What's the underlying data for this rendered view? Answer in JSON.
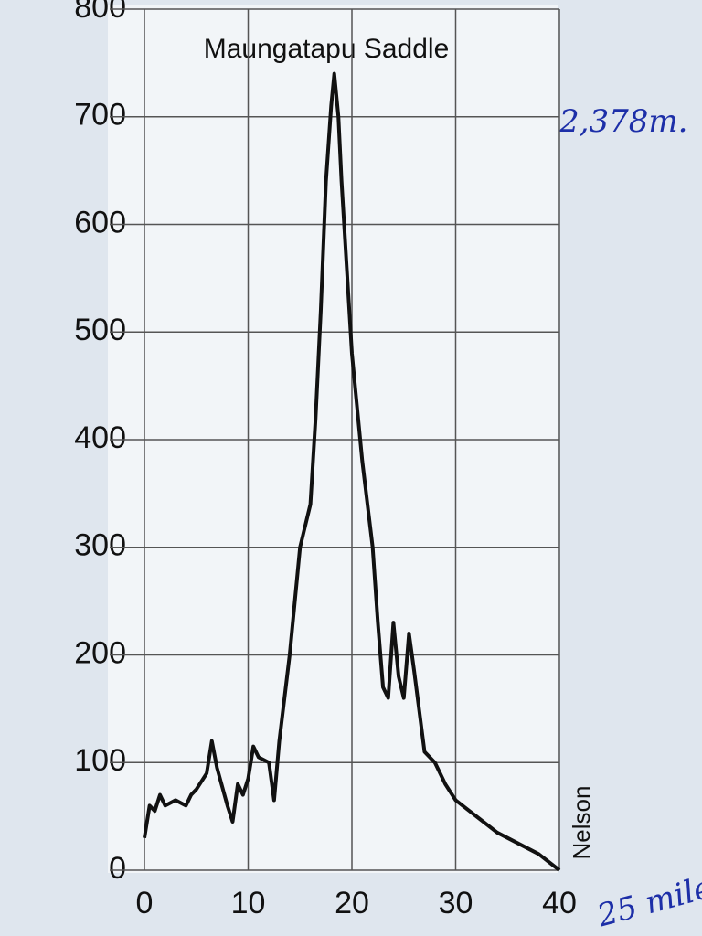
{
  "chart_data": {
    "type": "line",
    "x": [
      0,
      0.5,
      1,
      1.5,
      2,
      3,
      4,
      4.5,
      5,
      6,
      6.5,
      7,
      8,
      8.5,
      9,
      9.5,
      10,
      10.5,
      11,
      12,
      12.5,
      13,
      14,
      15,
      15.5,
      16,
      16.5,
      17,
      17.5,
      18,
      18.3,
      18.7,
      19,
      19.5,
      20,
      21,
      22,
      22.5,
      23,
      23.5,
      24,
      24.5,
      25,
      25.5,
      26,
      27,
      28,
      29,
      30,
      32,
      34,
      36,
      38,
      40
    ],
    "values": [
      30,
      60,
      55,
      70,
      60,
      65,
      60,
      70,
      75,
      90,
      120,
      95,
      60,
      45,
      80,
      70,
      85,
      115,
      105,
      100,
      65,
      120,
      200,
      300,
      320,
      340,
      420,
      520,
      640,
      710,
      740,
      700,
      640,
      560,
      480,
      380,
      300,
      230,
      170,
      160,
      230,
      180,
      160,
      220,
      185,
      110,
      100,
      80,
      65,
      50,
      35,
      25,
      15,
      0
    ],
    "color": "#111111",
    "xlim": [
      0,
      40
    ],
    "xticks": [
      0,
      10,
      20,
      30,
      40
    ],
    "ylim": [
      0,
      800
    ],
    "yticks": [
      0,
      100,
      200,
      300,
      400,
      500,
      600,
      700,
      800
    ],
    "grid": true,
    "annotations": [
      "Maungatapu Saddle",
      "Nelson",
      "2,378m.",
      "25 mile"
    ]
  }
}
